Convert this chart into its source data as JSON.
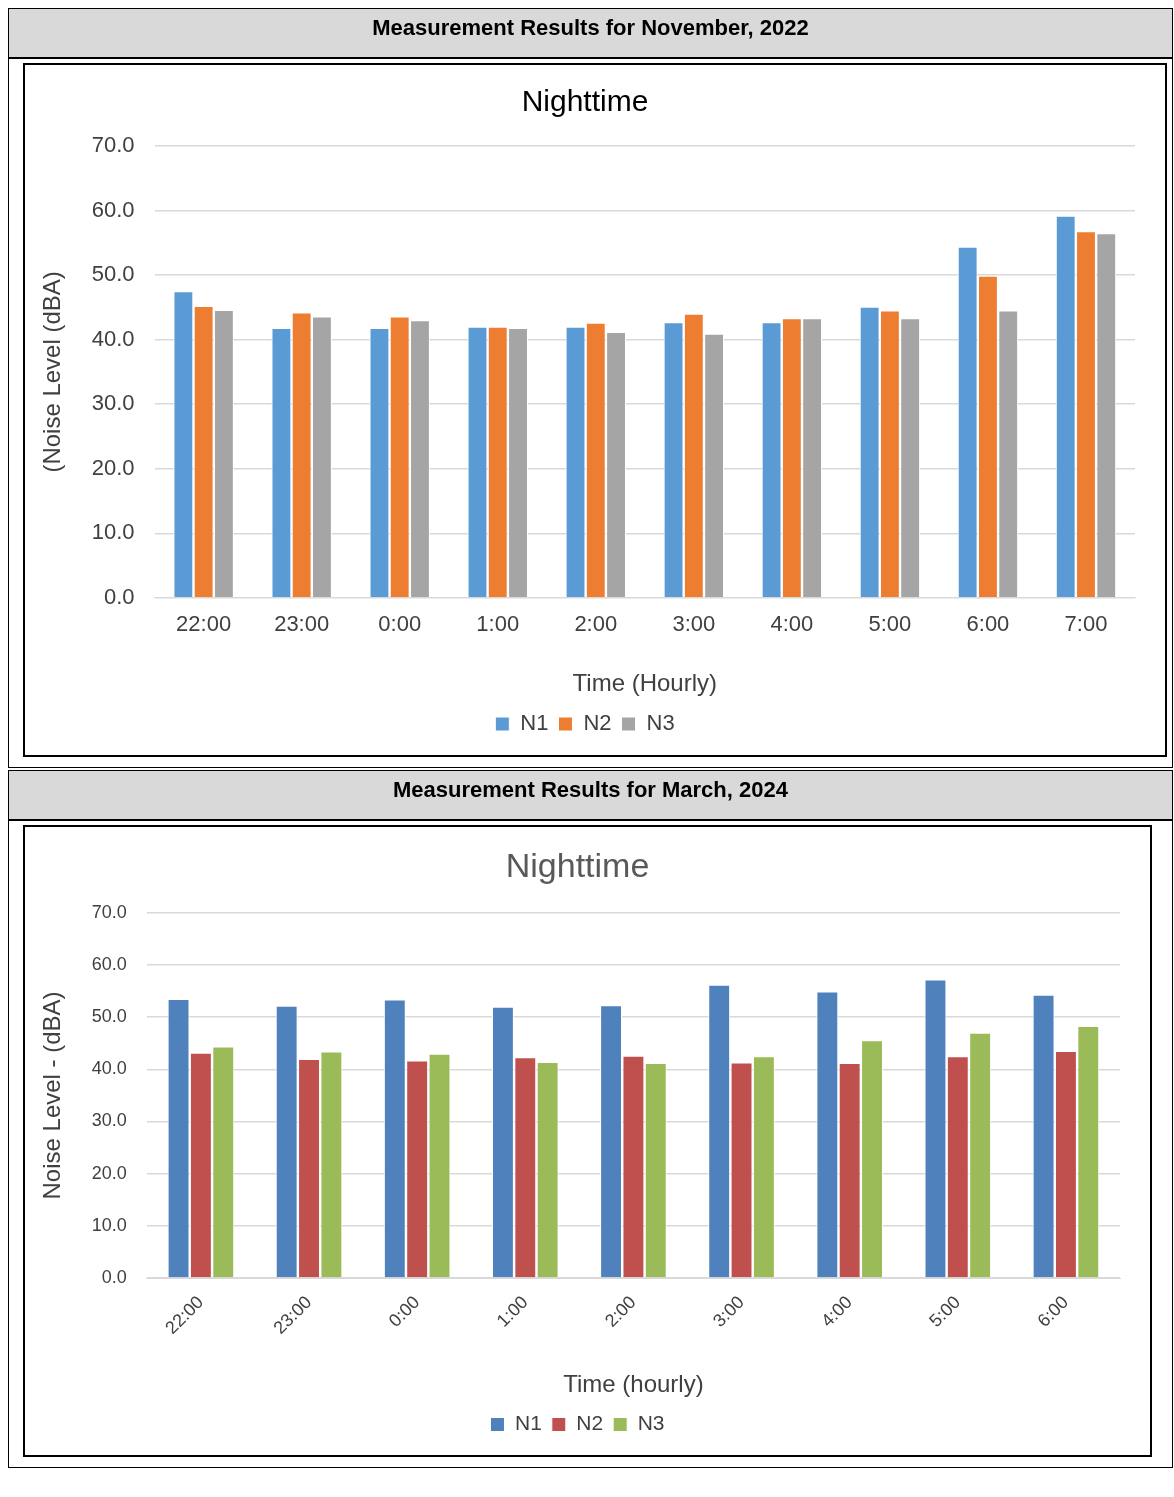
{
  "chart_data": [
    {
      "type": "bar",
      "title": "Measurement Results for November, 2022",
      "subtitle": "Nighttime",
      "xlabel": "Time (Hourly)",
      "ylabel": "(Noise Level (dBA)",
      "categories": [
        "22:00",
        "23:00",
        "0:00",
        "1:00",
        "2:00",
        "3:00",
        "4:00",
        "5:00",
        "6:00",
        "7:00"
      ],
      "series": [
        {
          "name": "N1",
          "color": "#5b9bd5",
          "values": [
            47.5,
            41.8,
            41.8,
            42.0,
            42.0,
            42.7,
            42.7,
            45.1,
            54.4,
            59.2
          ]
        },
        {
          "name": "N2",
          "color": "#ed7d31",
          "values": [
            45.2,
            44.2,
            43.6,
            42.0,
            42.6,
            44.0,
            43.3,
            44.5,
            49.9,
            56.8
          ]
        },
        {
          "name": "N3",
          "color": "#a5a5a5",
          "values": [
            44.6,
            43.6,
            43.0,
            41.8,
            41.2,
            40.9,
            43.3,
            43.3,
            44.5,
            56.5
          ]
        }
      ],
      "ylim": [
        0,
        70
      ],
      "yticks": [
        {
          "value": 0,
          "label": "0.0"
        },
        {
          "value": 10,
          "label": "10.0"
        },
        {
          "value": 20,
          "label": "20.0"
        },
        {
          "value": 30,
          "label": "30.0"
        },
        {
          "value": 40,
          "label": "40.0"
        },
        {
          "value": 50,
          "label": "50.0"
        },
        {
          "value": 60,
          "label": "60.0"
        },
        {
          "value": 70,
          "label": "70.0"
        }
      ],
      "grid": "y",
      "legend": "bottom"
    },
    {
      "type": "bar",
      "title": "Measurement Results for March, 2024",
      "subtitle": "Nighttime",
      "xlabel": "Time (hourly)",
      "ylabel": "Noise Level - (dBA)",
      "categories": [
        "22:00",
        "23:00",
        "0:00",
        "1:00",
        "2:00",
        "3:00",
        "4:00",
        "5:00",
        "6:00"
      ],
      "series": [
        {
          "name": "N1",
          "color": "#4f81bd",
          "values": [
            53.5,
            52.2,
            53.4,
            52.0,
            52.3,
            56.2,
            54.9,
            57.2,
            54.3
          ]
        },
        {
          "name": "N2",
          "color": "#c0504d",
          "values": [
            43.2,
            42.0,
            41.7,
            42.3,
            42.6,
            41.3,
            41.2,
            42.5,
            43.5
          ]
        },
        {
          "name": "N3",
          "color": "#9bbb59",
          "values": [
            44.4,
            43.4,
            43.0,
            41.4,
            41.2,
            42.5,
            45.6,
            47.0,
            48.3
          ]
        }
      ],
      "ylim": [
        0,
        70
      ],
      "yticks": [
        {
          "value": 0,
          "label": "0.0"
        },
        {
          "value": 10,
          "label": "10.0"
        },
        {
          "value": 20,
          "label": "20.0"
        },
        {
          "value": 30,
          "label": "30.0"
        },
        {
          "value": 40,
          "label": "40.0"
        },
        {
          "value": 50,
          "label": "50.0"
        },
        {
          "value": 60,
          "label": "60.0"
        },
        {
          "value": 70,
          "label": "70.0"
        }
      ],
      "grid": "y",
      "legend": "bottom"
    }
  ]
}
